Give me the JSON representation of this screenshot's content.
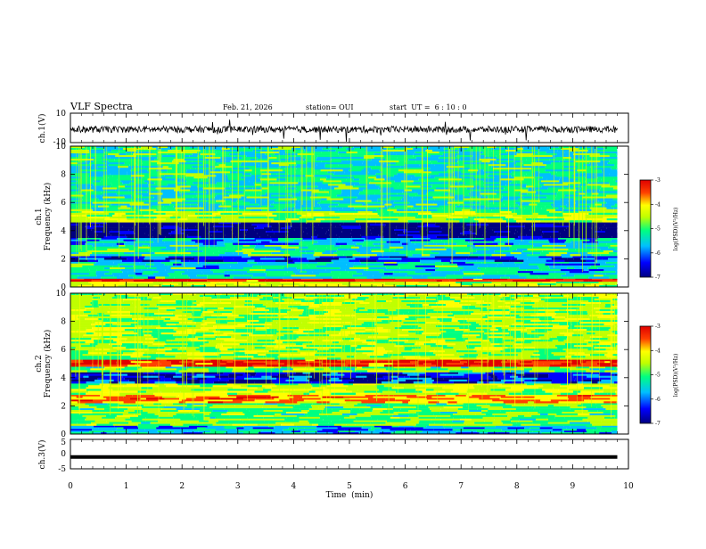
{
  "header": {
    "title": "VLF Spectra",
    "date": "Feb. 21, 2026",
    "station": "station= OUI",
    "start_ut": "start  UT =  6 : 10 : 0"
  },
  "chart_data": [
    {
      "type": "line",
      "ylabel": "ch.1(V)",
      "ylim": [
        -10,
        10
      ],
      "yticks": [
        "10",
        "-10"
      ],
      "x": [
        0,
        1,
        2,
        3,
        4,
        5,
        6,
        7,
        8,
        9,
        9.8
      ],
      "values": [
        -1,
        -1,
        -1,
        -1,
        -1,
        -1,
        -1,
        -1,
        -1,
        -1,
        -1
      ]
    },
    {
      "type": "heatmap",
      "ylabel": "ch.1",
      "ylabel2": "Frequency  (kHz)",
      "ylim": [
        0,
        10
      ],
      "yticks": [
        "0",
        "2",
        "4",
        "6",
        "8",
        "10"
      ],
      "xlim": [
        0,
        9.8
      ],
      "bands": [
        {
          "freq": [
            0.0,
            0.4
          ],
          "level": -4.6
        },
        {
          "freq": [
            0.4,
            0.6
          ],
          "level": -3.5
        },
        {
          "freq": [
            0.6,
            1.8
          ],
          "level": -5.5
        },
        {
          "freq": [
            1.8,
            2.2
          ],
          "level": -6.2
        },
        {
          "freq": [
            2.2,
            3.0
          ],
          "level": -5.3
        },
        {
          "freq": [
            3.0,
            3.5
          ],
          "level": -5.8
        },
        {
          "freq": [
            3.5,
            4.6
          ],
          "level": -6.9
        },
        {
          "freq": [
            4.6,
            5.4
          ],
          "level": -4.8
        },
        {
          "freq": [
            5.4,
            10.0
          ],
          "level": -5.4
        }
      ],
      "colorbar": {
        "label": "log(PSD)(V²/Hz)",
        "range": [
          -7,
          -3
        ],
        "ticks": [
          "-3",
          "-4",
          "-5",
          "-6",
          "-7"
        ]
      }
    },
    {
      "type": "heatmap",
      "ylabel": "ch.2",
      "ylabel2": "Frequency  (kHz)",
      "ylim": [
        0,
        10
      ],
      "yticks": [
        "0",
        "2",
        "4",
        "6",
        "8",
        "10"
      ],
      "xlim": [
        0,
        9.8
      ],
      "bands": [
        {
          "freq": [
            0.0,
            0.6
          ],
          "level": -5.7
        },
        {
          "freq": [
            0.6,
            2.2
          ],
          "level": -5.0
        },
        {
          "freq": [
            2.2,
            2.8
          ],
          "level": -4.0
        },
        {
          "freq": [
            2.8,
            3.6
          ],
          "level": -4.7
        },
        {
          "freq": [
            3.6,
            4.4
          ],
          "level": -6.3
        },
        {
          "freq": [
            4.4,
            4.8
          ],
          "level": -5.0
        },
        {
          "freq": [
            4.8,
            5.3
          ],
          "level": -3.5
        },
        {
          "freq": [
            5.3,
            10.0
          ],
          "level": -4.8
        }
      ],
      "colorbar": {
        "label": "log(PSD)(V²/Hz)",
        "range": [
          -7,
          -3
        ],
        "ticks": [
          "-3",
          "-4",
          "-5",
          "-6",
          "-7"
        ]
      }
    },
    {
      "type": "line",
      "ylabel": "ch.3(V)",
      "ylim": [
        -5,
        5
      ],
      "yticks": [
        "5",
        "0",
        "-5"
      ],
      "x": [
        0,
        9.8
      ],
      "values": [
        -1,
        -1
      ]
    }
  ],
  "x_axis": {
    "xlabel": "Time  (min)",
    "xlim": [
      0,
      10
    ],
    "ticks": [
      "0",
      "1",
      "2",
      "3",
      "4",
      "5",
      "6",
      "7",
      "8",
      "9",
      "10"
    ]
  },
  "colors": {
    "colormap": [
      "#000080",
      "#0000ff",
      "#00bfff",
      "#00ff80",
      "#c0ff00",
      "#ffff00",
      "#ff4000",
      "#e00000"
    ]
  }
}
